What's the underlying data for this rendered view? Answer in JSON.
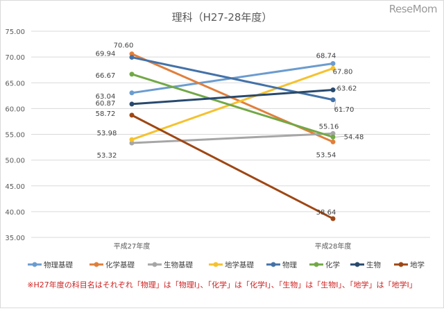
{
  "brand": "ReseMom",
  "footnote": "※H27年度の科目名はそれぞれ「物理」は「物理Ⅰ」、「化学」は「化学Ⅰ」、「生物」は「生物Ⅰ」、「地学」は「地学Ⅰ」",
  "chart_data": {
    "type": "line",
    "title": "理科（H27-28年度）",
    "categories": [
      "平成27年度",
      "平成28年度"
    ],
    "ylim": [
      35,
      75
    ],
    "yticks": [
      "75.00",
      "70.00",
      "65.00",
      "60.00",
      "55.00",
      "50.00",
      "45.00",
      "40.00",
      "35.00"
    ],
    "grid": true,
    "legend_position": "bottom",
    "series": [
      {
        "name": "物理基礎",
        "color": "#6b9ccf",
        "values": [
          63.04,
          68.74
        ],
        "labels": [
          "63.04",
          "68.74"
        ]
      },
      {
        "name": "化学基礎",
        "color": "#e07f3c",
        "values": [
          70.6,
          53.54
        ],
        "labels": [
          "70.60",
          "53.54"
        ]
      },
      {
        "name": "生物基礎",
        "color": "#a6a6a6",
        "values": [
          53.32,
          55.16
        ],
        "labels": [
          "53.32",
          "55.16"
        ]
      },
      {
        "name": "地学基礎",
        "color": "#f5c12e",
        "values": [
          53.98,
          67.8
        ],
        "labels": [
          "53.98",
          "67.80"
        ]
      },
      {
        "name": "物理",
        "color": "#4472a8",
        "values": [
          69.94,
          61.7
        ],
        "labels": [
          "69.94",
          "61.70"
        ]
      },
      {
        "name": "化学",
        "color": "#72a846",
        "values": [
          66.67,
          54.48
        ],
        "labels": [
          "66.67",
          "54.48"
        ]
      },
      {
        "name": "生物",
        "color": "#27496d",
        "values": [
          60.87,
          63.62
        ],
        "labels": [
          "60.87",
          "63.62"
        ]
      },
      {
        "name": "地学",
        "color": "#9e4714",
        "values": [
          58.72,
          38.64
        ],
        "labels": [
          "58.72",
          "38.64"
        ]
      }
    ]
  }
}
